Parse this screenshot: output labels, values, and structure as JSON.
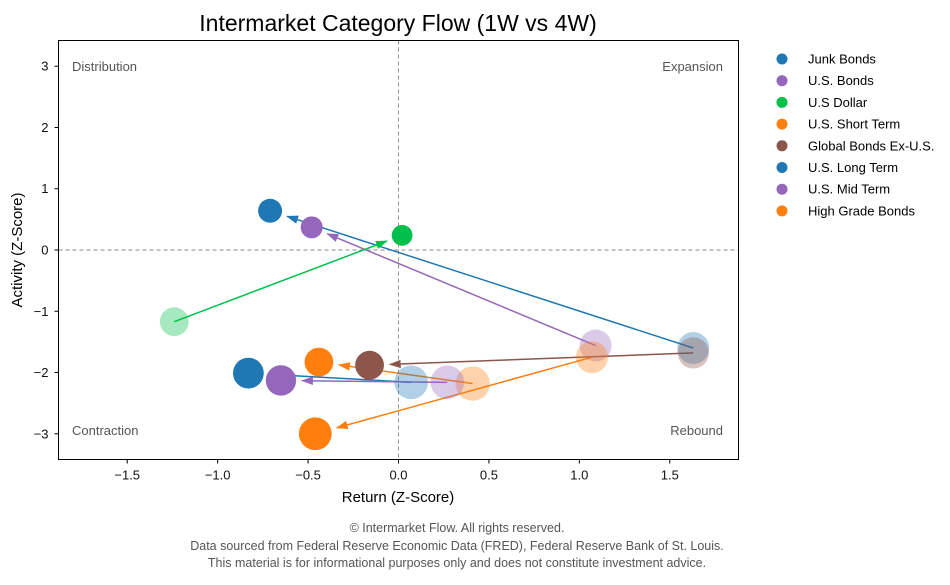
{
  "chart_data": {
    "type": "scatter",
    "title": "Intermarket Category Flow (1W vs 4W)",
    "xlabel": "Return (Z-Score)",
    "ylabel": "Activity (Z-Score)",
    "xlim": [
      -1.88,
      1.88
    ],
    "ylim": [
      -3.42,
      3.42
    ],
    "x_ticks": [
      -1.5,
      -1.0,
      -0.5,
      0.0,
      0.5,
      1.0,
      1.5
    ],
    "x_tick_labels": [
      "−1.5",
      "−1.0",
      "−0.5",
      "0.0",
      "0.5",
      "1.0",
      "1.5"
    ],
    "y_ticks": [
      3,
      2,
      1,
      0,
      -1,
      -2,
      -3
    ],
    "y_tick_labels": [
      "3",
      "2",
      "1",
      "0",
      "−1",
      "−2",
      "−3"
    ],
    "reference_lines": {
      "x": 0,
      "y": 0,
      "style": "dashed"
    },
    "quadrant_labels": {
      "top_left": "Distribution",
      "top_right": "Expansion",
      "bottom_left": "Contraction",
      "bottom_right": "Rebound"
    },
    "legend_position": "outside-right",
    "series": [
      {
        "name": "Junk Bonds",
        "color": "#1f77b4",
        "current": {
          "x": -0.71,
          "y": 0.64,
          "size": 1
        },
        "prior": {
          "x": 1.63,
          "y": -1.6,
          "size": 2
        }
      },
      {
        "name": "U.S. Bonds",
        "color": "#9467bd",
        "current": {
          "x": -0.48,
          "y": 0.37,
          "size": 0.75
        },
        "prior": {
          "x": 1.09,
          "y": -1.56,
          "size": 2
        }
      },
      {
        "name": "U.S Dollar",
        "color": "#00c04b",
        "current": {
          "x": 0.02,
          "y": 0.24,
          "size": 0.6
        },
        "prior": {
          "x": -1.24,
          "y": -1.17,
          "size": 1.6
        }
      },
      {
        "name": "U.S. Short Term",
        "color": "#ff7f0e",
        "current": {
          "x": -0.44,
          "y": -1.83,
          "size": 1.6
        },
        "prior": {
          "x": 0.41,
          "y": -2.18,
          "size": 2.3
        }
      },
      {
        "name": "Global Bonds Ex-U.S.",
        "color": "#8c564b",
        "current": {
          "x": -0.16,
          "y": -1.88,
          "size": 1.6
        },
        "prior": {
          "x": 1.63,
          "y": -1.68,
          "size": 1.9
        }
      },
      {
        "name": "U.S. Long Term",
        "color": "#1f77b4",
        "current": {
          "x": -0.83,
          "y": -2.01,
          "size": 1.85
        },
        "prior": {
          "x": 0.07,
          "y": -2.16,
          "size": 2.2
        }
      },
      {
        "name": "U.S. Mid Term",
        "color": "#9467bd",
        "current": {
          "x": -0.65,
          "y": -2.13,
          "size": 1.8
        },
        "prior": {
          "x": 0.27,
          "y": -2.16,
          "size": 2.2
        }
      },
      {
        "name": "High Grade Bonds",
        "color": "#ff7f0e",
        "current": {
          "x": -0.46,
          "y": -3.0,
          "size": 2.1
        },
        "prior": {
          "x": 1.07,
          "y": -1.75,
          "size": 2
        }
      }
    ]
  },
  "footer": {
    "line1": "© Intermarket Flow. All rights reserved.",
    "line2": "Data sourced from Federal Reserve Economic Data (FRED), Federal Reserve Bank of St. Louis.",
    "line3": "This material is for informational purposes only and does not constitute investment advice."
  }
}
